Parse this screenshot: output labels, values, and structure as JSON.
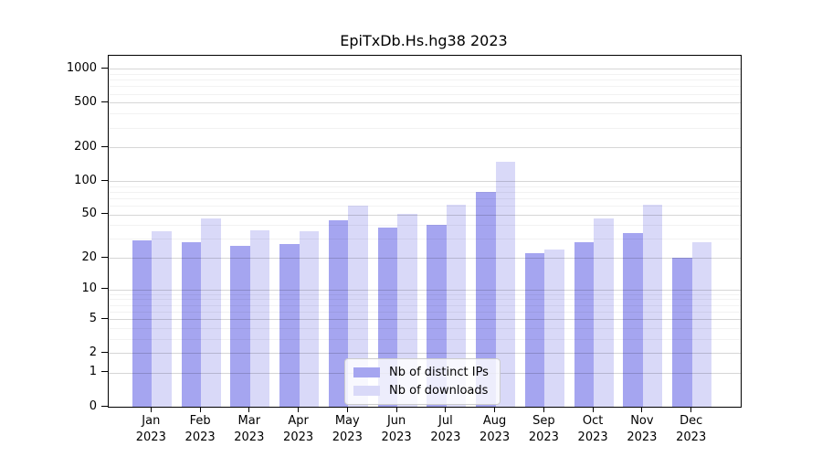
{
  "chart_data": {
    "type": "bar",
    "title": "EpiTxDb.Hs.hg38 2023",
    "categories": [
      "Jan 2023",
      "Feb 2023",
      "Mar 2023",
      "Apr 2023",
      "May 2023",
      "Jun 2023",
      "Jul 2023",
      "Aug 2023",
      "Sep 2023",
      "Oct 2023",
      "Nov 2023",
      "Dec 2023"
    ],
    "months": [
      "Jan",
      "Feb",
      "Mar",
      "Apr",
      "May",
      "Jun",
      "Jul",
      "Aug",
      "Sep",
      "Oct",
      "Nov",
      "Dec"
    ],
    "year_label": "2023",
    "series": [
      {
        "name": "Nb of distinct IPs",
        "color": "#a5a5f0",
        "values": [
          29,
          28,
          26,
          27,
          44,
          38,
          40,
          80,
          22,
          28,
          34,
          20
        ]
      },
      {
        "name": "Nb of downloads",
        "color": "#d9d9f8",
        "values": [
          35,
          46,
          36,
          35,
          60,
          51,
          61,
          150,
          24,
          46,
          61,
          28
        ]
      }
    ],
    "y_axis": {
      "scale": "log1p",
      "ticks": [
        1000,
        500,
        200,
        100,
        50,
        20,
        10,
        5,
        2,
        1,
        0
      ],
      "minor_gridlines": [
        900,
        800,
        700,
        600,
        400,
        300,
        90,
        80,
        70,
        60,
        40,
        30,
        9,
        8,
        7,
        6,
        4,
        3
      ],
      "ylim": [
        0,
        1000
      ]
    },
    "grid": true,
    "legend_position": "inside-bottom-center",
    "colors": {
      "background": "#ffffff",
      "frame": "#000000",
      "major_grid": "rgba(0,0,0,0.16)",
      "minor_grid": "rgba(0,0,0,0.05)"
    }
  }
}
